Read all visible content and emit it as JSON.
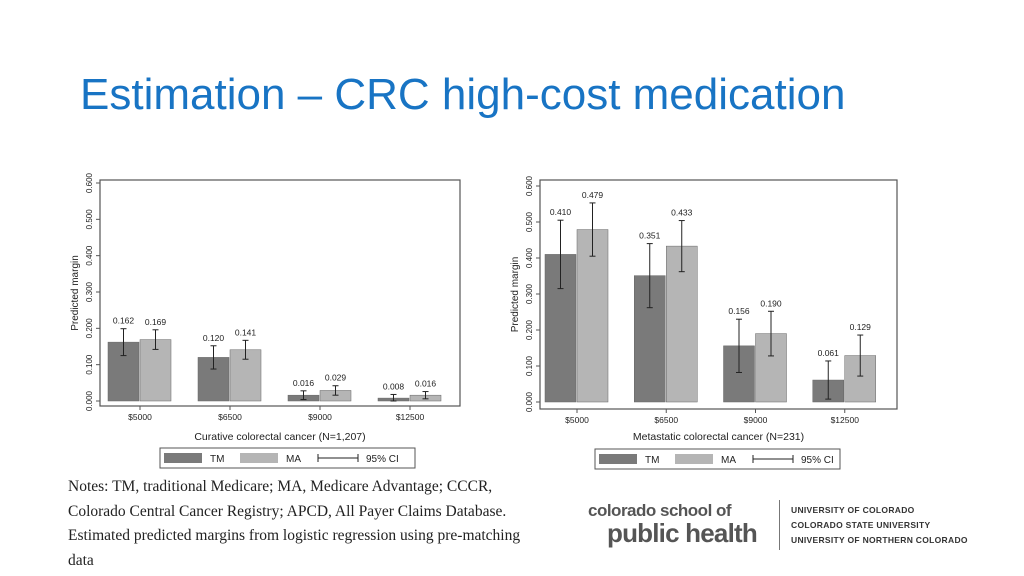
{
  "slide": {
    "title": "Estimation – CRC high-cost medication",
    "notes": "Notes: TM, traditional Medicare; MA, Medicare Advantage; CCCR, Colorado Central Cancer Registry; APCD, All Payer Claims Database. Estimated predicted margins from logistic regression using pre-matching data"
  },
  "logo": {
    "line1": "colorado school of",
    "line2": "public health",
    "universities": [
      "UNIVERSITY OF COLORADO",
      "COLORADO STATE UNIVERSITY",
      "UNIVERSITY OF NORTHERN COLORADO"
    ]
  },
  "colors": {
    "tm": "#7a7a7a",
    "ma": "#b5b5b5",
    "title": "#1874c4"
  },
  "chart_data": [
    {
      "type": "bar",
      "xlabel": "Curative colorectal cancer (N=1,207)",
      "ylabel": "Predicted margin",
      "categories": [
        "$5000",
        "$6500",
        "$9000",
        "$12500"
      ],
      "yticks": [
        "0.000",
        "0.100",
        "0.200",
        "0.300",
        "0.400",
        "0.500",
        "0.600"
      ],
      "ylim": [
        0,
        0.6
      ],
      "series": [
        {
          "name": "TM",
          "values": [
            0.162,
            0.12,
            0.016,
            0.008
          ],
          "labels": [
            "0.162",
            "0.120",
            "0.016",
            "0.008"
          ],
          "ci": [
            [
              0.125,
              0.199
            ],
            [
              0.088,
              0.152
            ],
            [
              0.004,
              0.028
            ],
            [
              0.0,
              0.018
            ]
          ]
        },
        {
          "name": "MA",
          "values": [
            0.169,
            0.141,
            0.029,
            0.016
          ],
          "labels": [
            "0.169",
            "0.141",
            "0.029",
            "0.016"
          ],
          "ci": [
            [
              0.142,
              0.196
            ],
            [
              0.115,
              0.167
            ],
            [
              0.016,
              0.042
            ],
            [
              0.006,
              0.026
            ]
          ]
        }
      ],
      "legend": {
        "tm": "TM",
        "ma": "MA",
        "ci": "95% CI"
      },
      "legend_position": "bottom",
      "grid": false
    },
    {
      "type": "bar",
      "xlabel": "Metastatic colorectal cancer (N=231)",
      "ylabel": "Predicted margin",
      "categories": [
        "$5000",
        "$6500",
        "$9000",
        "$12500"
      ],
      "yticks": [
        "0.000",
        "0.100",
        "0.200",
        "0.300",
        "0.400",
        "0.500",
        "0.600"
      ],
      "ylim": [
        0,
        0.6
      ],
      "series": [
        {
          "name": "TM",
          "values": [
            0.41,
            0.351,
            0.156,
            0.061
          ],
          "labels": [
            "0.410",
            "0.351",
            "0.156",
            "0.061"
          ],
          "ci": [
            [
              0.315,
              0.505
            ],
            [
              0.262,
              0.44
            ],
            [
              0.082,
              0.23
            ],
            [
              0.008,
              0.114
            ]
          ]
        },
        {
          "name": "MA",
          "values": [
            0.479,
            0.433,
            0.19,
            0.129
          ],
          "labels": [
            "0.479",
            "0.433",
            "0.190",
            "0.129"
          ],
          "ci": [
            [
              0.405,
              0.553
            ],
            [
              0.362,
              0.504
            ],
            [
              0.128,
              0.252
            ],
            [
              0.072,
              0.186
            ]
          ]
        }
      ],
      "legend": {
        "tm": "TM",
        "ma": "MA",
        "ci": "95% CI"
      },
      "legend_position": "bottom",
      "grid": false
    }
  ]
}
